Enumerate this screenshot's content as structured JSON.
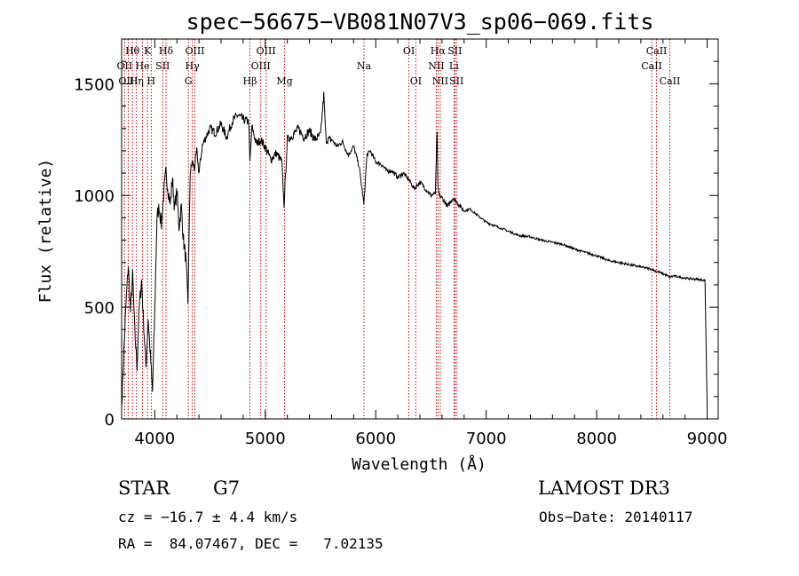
{
  "chart_data": {
    "type": "line",
    "title": "spec−56675−VB081N07V3_sp06−069.fits",
    "xlabel": "Wavelength (Å)",
    "ylabel": "Flux (relative)",
    "xlim": [
      3700,
      9100
    ],
    "ylim": [
      0,
      1700
    ],
    "xticks": [
      4000,
      5000,
      6000,
      7000,
      8000,
      9000
    ],
    "yticks": [
      0,
      500,
      1000,
      1500
    ],
    "grid": false,
    "series": [
      {
        "name": "flux",
        "color": "#000000",
        "x": [
          3700,
          3720,
          3740,
          3760,
          3780,
          3800,
          3820,
          3840,
          3860,
          3880,
          3900,
          3920,
          3940,
          3960,
          3980,
          4000,
          4020,
          4040,
          4060,
          4080,
          4100,
          4120,
          4140,
          4160,
          4180,
          4200,
          4220,
          4240,
          4260,
          4280,
          4300,
          4320,
          4340,
          4360,
          4380,
          4400,
          4430,
          4460,
          4500,
          4550,
          4600,
          4650,
          4700,
          4750,
          4800,
          4850,
          4861,
          4880,
          4920,
          4960,
          5007,
          5050,
          5100,
          5150,
          5170,
          5183,
          5200,
          5250,
          5300,
          5350,
          5400,
          5450,
          5500,
          5530,
          5550,
          5600,
          5650,
          5700,
          5750,
          5800,
          5850,
          5893,
          5920,
          5950,
          6000,
          6050,
          6100,
          6150,
          6200,
          6250,
          6300,
          6350,
          6400,
          6450,
          6500,
          6540,
          6555,
          6563,
          6575,
          6600,
          6650,
          6700,
          6750,
          6800,
          6850,
          6900,
          7000,
          7100,
          7200,
          7300,
          7400,
          7500,
          7600,
          7700,
          7800,
          7900,
          8000,
          8100,
          8200,
          8300,
          8400,
          8500,
          8542,
          8600,
          8662,
          8700,
          8800,
          8900,
          8980,
          9000
        ],
        "values": [
          60,
          300,
          520,
          690,
          480,
          640,
          380,
          240,
          500,
          620,
          420,
          230,
          450,
          280,
          120,
          480,
          900,
          950,
          870,
          1000,
          1100,
          1030,
          960,
          1080,
          940,
          1020,
          860,
          950,
          800,
          720,
          520,
          1100,
          1150,
          1120,
          1200,
          1100,
          1220,
          1260,
          1300,
          1280,
          1320,
          1260,
          1330,
          1360,
          1340,
          1330,
          1150,
          1310,
          1230,
          1250,
          1210,
          1160,
          1190,
          1150,
          960,
          1080,
          1250,
          1270,
          1300,
          1260,
          1290,
          1250,
          1270,
          1450,
          1250,
          1250,
          1220,
          1240,
          1180,
          1220,
          1130,
          960,
          1180,
          1200,
          1150,
          1140,
          1110,
          1110,
          1080,
          1100,
          1070,
          1030,
          1060,
          1030,
          1000,
          1010,
          1290,
          1040,
          1000,
          990,
          950,
          990,
          960,
          930,
          940,
          920,
          880,
          860,
          840,
          820,
          815,
          800,
          790,
          780,
          760,
          745,
          730,
          710,
          700,
          690,
          680,
          670,
          660,
          650,
          635,
          640,
          630,
          625,
          620,
          40
        ]
      }
    ],
    "lines": [
      {
        "label": "Hθ",
        "wavelength": 3798,
        "row": 1
      },
      {
        "label": "OII",
        "wavelength": 3727,
        "row": 2
      },
      {
        "label": "OIII",
        "wavelength": 3760,
        "row": 3
      },
      {
        "label": "He",
        "wavelength": 3889,
        "row": 2
      },
      {
        "label": "K",
        "wavelength": 3934,
        "row": 1
      },
      {
        "label": "Hη",
        "wavelength": 3835,
        "row": 3
      },
      {
        "label": "H",
        "wavelength": 3968,
        "row": 3
      },
      {
        "label": "SII",
        "wavelength": 4072,
        "row": 2
      },
      {
        "label": "Hδ",
        "wavelength": 4102,
        "row": 1
      },
      {
        "label": "G",
        "wavelength": 4304,
        "row": 3
      },
      {
        "label": "Hγ",
        "wavelength": 4340,
        "row": 2
      },
      {
        "label": "OIII",
        "wavelength": 4363,
        "row": 1
      },
      {
        "label": "Hβ",
        "wavelength": 4861,
        "row": 3
      },
      {
        "label": "OIII",
        "wavelength": 4959,
        "row": 2
      },
      {
        "label": "OIII",
        "wavelength": 5007,
        "row": 1
      },
      {
        "label": "Mg",
        "wavelength": 5175,
        "row": 3
      },
      {
        "label": "Na",
        "wavelength": 5893,
        "row": 2
      },
      {
        "label": "OI",
        "wavelength": 6300,
        "row": 1
      },
      {
        "label": "OI",
        "wavelength": 6363,
        "row": 3
      },
      {
        "label": "NII",
        "wavelength": 6548,
        "row": 2
      },
      {
        "label": "Hα",
        "wavelength": 6563,
        "row": 1
      },
      {
        "label": "NII",
        "wavelength": 6584,
        "row": 3
      },
      {
        "label": "Li",
        "wavelength": 6708,
        "row": 2
      },
      {
        "label": "SII",
        "wavelength": 6716,
        "row": 1
      },
      {
        "label": "SII",
        "wavelength": 6731,
        "row": 3
      },
      {
        "label": "CaII",
        "wavelength": 8498,
        "row": 2
      },
      {
        "label": "CaII",
        "wavelength": 8542,
        "row": 1
      },
      {
        "label": "CaII",
        "wavelength": 8662,
        "row": 3
      }
    ],
    "colors": {
      "line_markers": "#cc0000",
      "curve": "#000000",
      "axes": "#000000"
    }
  },
  "info": {
    "object_class": "STAR",
    "subclass": "G7",
    "survey": "LAMOST DR3",
    "cz": "cz = −16.7 ± 4.4 km/s",
    "obs_date": "Obs−Date: 20140117",
    "coords": "RA =  84.07467, DEC =   7.02135"
  }
}
